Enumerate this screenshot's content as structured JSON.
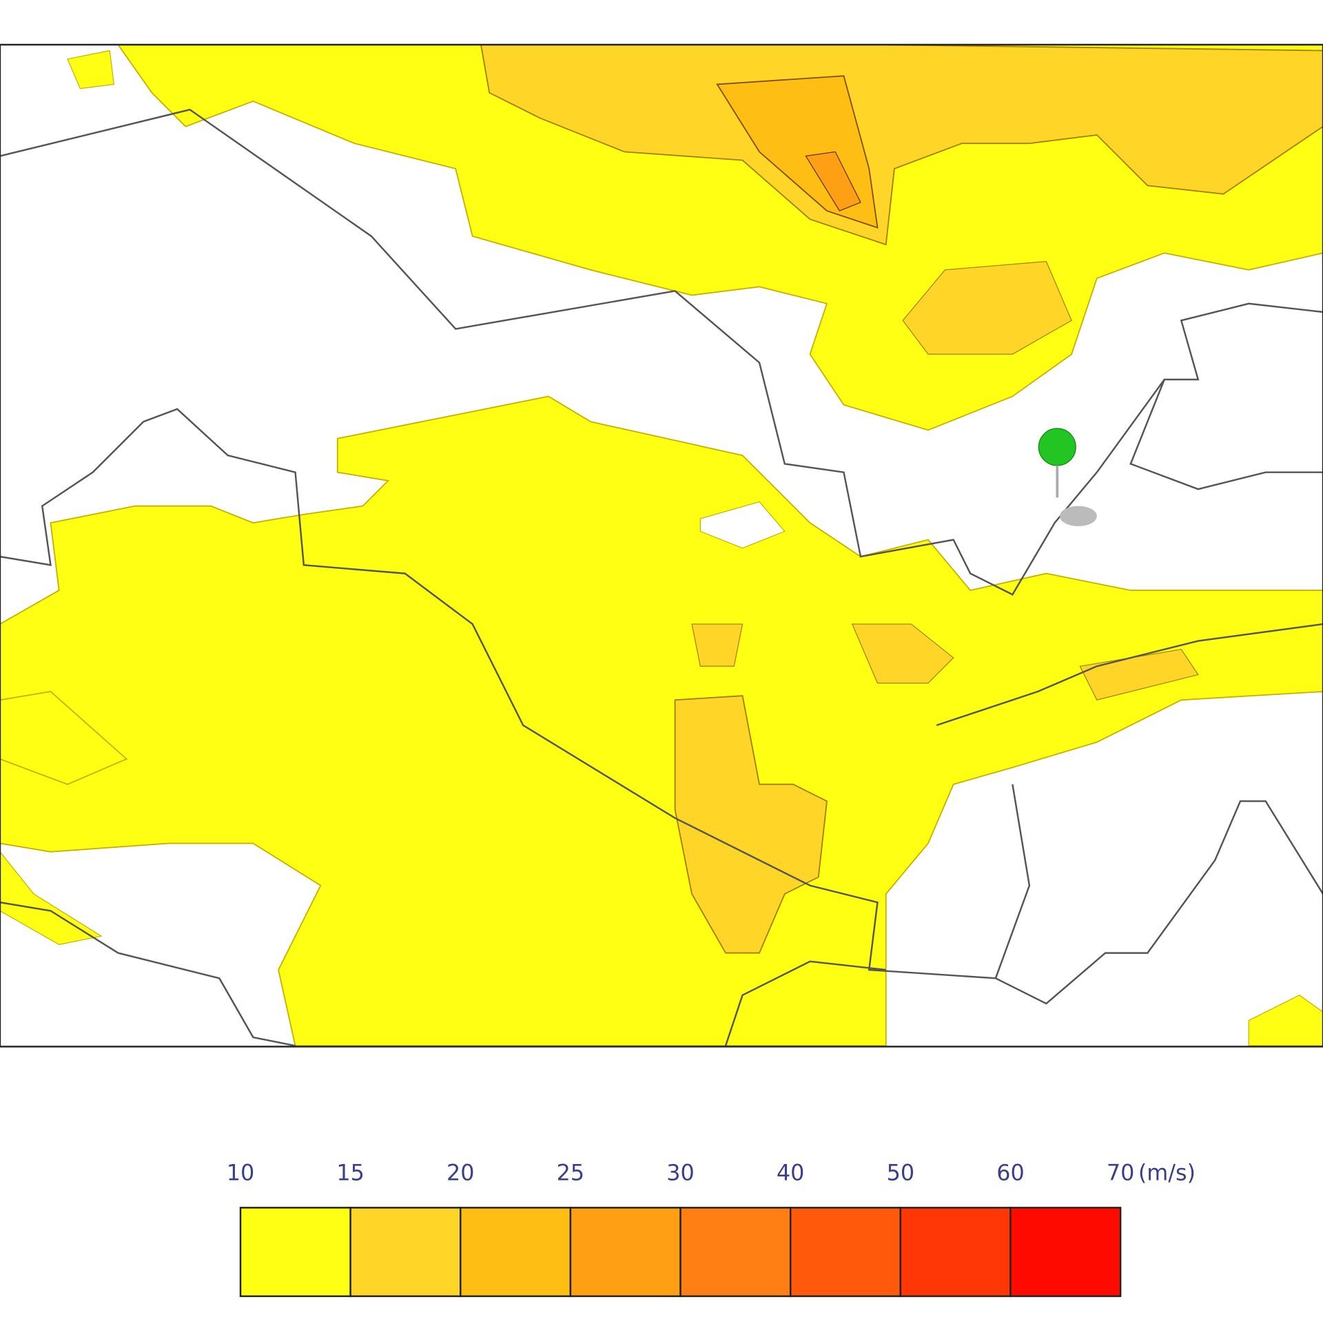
{
  "legend": {
    "ticks": [
      10,
      15,
      20,
      25,
      30,
      40,
      50,
      60,
      70
    ],
    "unit": "(m/s)",
    "colors": [
      "#ffff14",
      "#ffd528",
      "#ffbe14",
      "#ff9f14",
      "#ff7f14",
      "#ff5a0c",
      "#ff3606",
      "#ff0a00"
    ]
  }
}
